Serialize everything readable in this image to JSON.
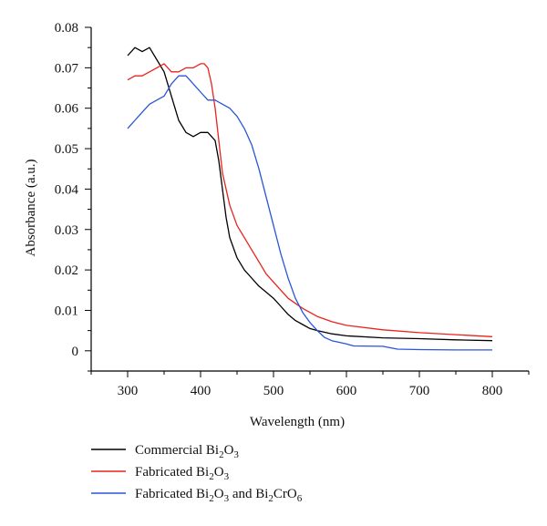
{
  "chart_data": {
    "type": "line",
    "title": "",
    "xlabel": "Wavelength (nm)",
    "ylabel": "Absorbance (a.u.)",
    "xlim": [
      250,
      850
    ],
    "ylim": [
      -0.005,
      0.08
    ],
    "xticks": [
      "300",
      "400",
      "500",
      "600",
      "700",
      "800"
    ],
    "yticks": [
      "0",
      "0.01",
      "0.02",
      "0.03",
      "0.04",
      "0.05",
      "0.06",
      "0.07",
      "0.08"
    ],
    "grid": false,
    "legend_position": "bottom",
    "series": [
      {
        "name": "Commercial Bi2O3",
        "legend": {
          "pre1": "Commercial Bi",
          "sub1": "2",
          "mid": "O",
          "sub2": "3",
          "pre2": "",
          "sub3": "",
          "mid2": "",
          "sub4": ""
        },
        "color": "#000000",
        "x": [
          300,
          310,
          320,
          330,
          340,
          350,
          360,
          370,
          380,
          390,
          400,
          410,
          420,
          425,
          430,
          435,
          440,
          450,
          460,
          470,
          480,
          490,
          500,
          510,
          520,
          530,
          540,
          550,
          560,
          580,
          600,
          650,
          700,
          750,
          800
        ],
        "y": [
          0.073,
          0.075,
          0.074,
          0.075,
          0.072,
          0.069,
          0.063,
          0.057,
          0.054,
          0.053,
          0.054,
          0.054,
          0.052,
          0.047,
          0.04,
          0.033,
          0.028,
          0.023,
          0.02,
          0.018,
          0.016,
          0.0145,
          0.013,
          0.011,
          0.009,
          0.0075,
          0.0065,
          0.0055,
          0.005,
          0.0042,
          0.0037,
          0.0032,
          0.003,
          0.0027,
          0.0025
        ]
      },
      {
        "name": "Fabricated Bi2O3",
        "legend": {
          "pre1": "Fabricated Bi",
          "sub1": "2",
          "mid": "O",
          "sub2": "3",
          "pre2": "",
          "sub3": "",
          "mid2": "",
          "sub4": ""
        },
        "color": "#e8231e",
        "x": [
          300,
          310,
          320,
          330,
          340,
          350,
          360,
          370,
          380,
          390,
          400,
          405,
          410,
          415,
          420,
          425,
          430,
          440,
          450,
          460,
          470,
          480,
          490,
          500,
          510,
          520,
          540,
          560,
          580,
          600,
          650,
          700,
          750,
          800
        ],
        "y": [
          0.067,
          0.068,
          0.068,
          0.069,
          0.07,
          0.071,
          0.069,
          0.069,
          0.07,
          0.07,
          0.071,
          0.071,
          0.07,
          0.066,
          0.06,
          0.052,
          0.044,
          0.036,
          0.031,
          0.028,
          0.025,
          0.022,
          0.019,
          0.017,
          0.015,
          0.013,
          0.0105,
          0.0085,
          0.0072,
          0.0063,
          0.0052,
          0.0045,
          0.004,
          0.0035
        ]
      },
      {
        "name": "Fabricated Bi2O3 and Bi2CrO6",
        "legend": {
          "pre1": "Fabricated Bi",
          "sub1": "2",
          "mid": "O",
          "sub2": "3",
          "pre2": " and Bi",
          "sub3": "2",
          "mid2": "CrO",
          "sub4": "6"
        },
        "color": "#2a55d8",
        "x": [
          300,
          305,
          310,
          320,
          330,
          340,
          350,
          360,
          370,
          380,
          390,
          400,
          410,
          420,
          430,
          440,
          450,
          460,
          470,
          480,
          490,
          500,
          510,
          520,
          530,
          540,
          550,
          560,
          570,
          580,
          600,
          610,
          650,
          670,
          700,
          750,
          800
        ],
        "y": [
          0.055,
          0.056,
          0.057,
          0.059,
          0.061,
          0.062,
          0.063,
          0.066,
          0.068,
          0.068,
          0.066,
          0.064,
          0.062,
          0.062,
          0.061,
          0.06,
          0.058,
          0.055,
          0.051,
          0.045,
          0.038,
          0.031,
          0.024,
          0.018,
          0.013,
          0.0095,
          0.007,
          0.005,
          0.0033,
          0.0025,
          0.0017,
          0.0012,
          0.0011,
          0.0004,
          0.0003,
          0.0002,
          0.0002
        ]
      }
    ]
  }
}
